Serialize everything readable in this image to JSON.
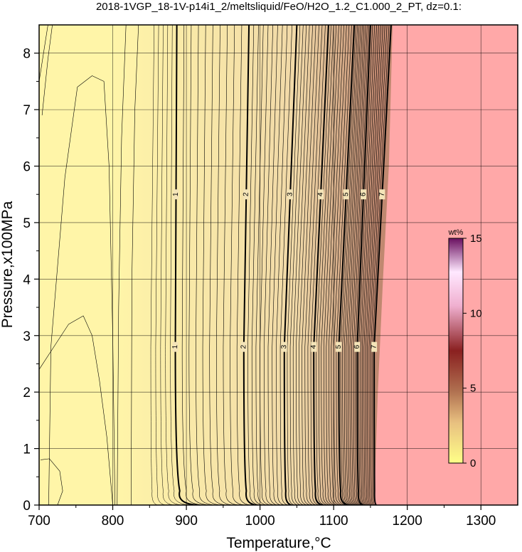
{
  "chart_data": {
    "type": "heatmap",
    "title": "2018-1VGP_18-1V-p14i1_2/meltsliquid/FeO/H2O_1.2_C1.000_2_PT, dz=0.1:",
    "xlabel": "Temperature,°C",
    "ylabel": "Pressure,x100MPa",
    "xlim": [
      700,
      1350
    ],
    "ylim": [
      0,
      8.5
    ],
    "x_ticks": [
      "700",
      "800",
      "900",
      "1000",
      "1100",
      "1200",
      "1300"
    ],
    "y_ticks": [
      "0",
      "1",
      "2",
      "3",
      "4",
      "5",
      "6",
      "7",
      "8"
    ],
    "grid": true,
    "colorbar": {
      "unit": "wt%",
      "range": [
        0,
        15
      ],
      "ticks": [
        "0",
        "5",
        "10",
        "15"
      ],
      "placement": "right-inside"
    },
    "contour_interval": 0.1,
    "labeled_contours": [
      {
        "label": "1",
        "t_at_p0": 915,
        "t_at_p2_8": 885,
        "t_at_p8_5": 887
      },
      {
        "label": "2",
        "t_at_p0": 995,
        "t_at_p2_8": 978,
        "t_at_p8_5": 985
      },
      {
        "label": "3",
        "t_at_p0": 1043,
        "t_at_p2_8": 1033,
        "t_at_p8_5": 1050
      },
      {
        "label": "4",
        "t_at_p0": 1085,
        "t_at_p2_8": 1073,
        "t_at_p8_5": 1093
      },
      {
        "label": "5",
        "t_at_p0": 1120,
        "t_at_p2_8": 1107,
        "t_at_p8_5": 1128
      },
      {
        "label": "6",
        "t_at_p0": 1140,
        "t_at_p2_8": 1132,
        "t_at_p8_5": 1150
      },
      {
        "label": "7",
        "t_at_p0": 1158,
        "t_at_p2_8": 1155,
        "t_at_p8_5": 1178
      }
    ],
    "no_melt_boundary": [
      [
        1155,
        0
      ],
      [
        1160,
        2
      ],
      [
        1167,
        4
      ],
      [
        1175,
        6
      ],
      [
        1180,
        8.5
      ]
    ],
    "colors": {
      "low": "#fff5a8",
      "mid": "#f1d9a8",
      "high": "#c08870",
      "no_melt_region": "#ffa8a8",
      "contour": "#000000"
    }
  }
}
